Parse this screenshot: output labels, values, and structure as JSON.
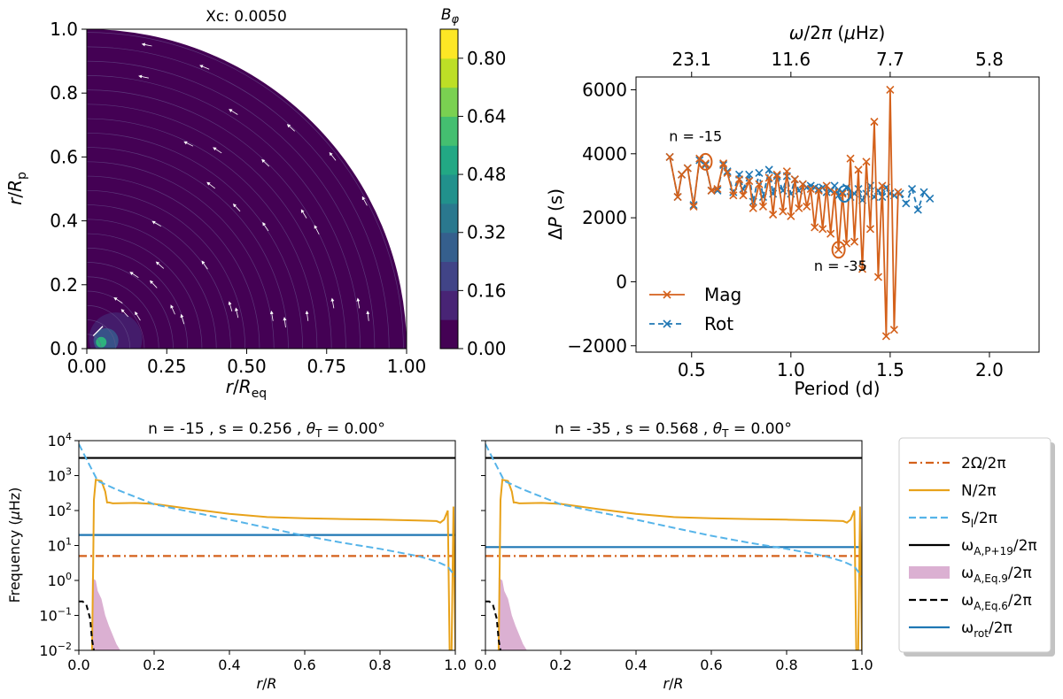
{
  "chart_data": [
    {
      "id": "meridional",
      "type": "heatmap",
      "title": "Xc: 0.0050",
      "xlabel": "r/R_eq",
      "ylabel": "r/R_p",
      "xlim": [
        0,
        1
      ],
      "ylim": [
        0,
        1
      ],
      "xticks": [
        "0.00",
        "0.25",
        "0.50",
        "0.75",
        "1.00"
      ],
      "yticks": [
        "0.0",
        "0.2",
        "0.4",
        "0.6",
        "0.8",
        "1.0"
      ],
      "colorbar": {
        "label": "B_φ",
        "ticks": [
          "0.00",
          "0.16",
          "0.32",
          "0.48",
          "0.64",
          "0.80"
        ],
        "range": [
          0,
          0.88
        ],
        "levels": [
          "#440154",
          "#482475",
          "#414487",
          "#355f8d",
          "#2a788e",
          "#21918c",
          "#22a884",
          "#44bf70",
          "#7ad151",
          "#bddf26",
          "#fde725"
        ]
      },
      "field_arrows": [
        [
          0.19,
          0.95
        ],
        [
          0.37,
          0.88
        ],
        [
          0.18,
          0.85
        ],
        [
          0.46,
          0.74
        ],
        [
          0.64,
          0.69
        ],
        [
          0.32,
          0.64
        ],
        [
          0.41,
          0.62
        ],
        [
          0.77,
          0.6
        ],
        [
          0.56,
          0.58
        ],
        [
          0.39,
          0.51
        ],
        [
          0.47,
          0.44
        ],
        [
          0.68,
          0.42
        ],
        [
          0.22,
          0.39
        ],
        [
          0.56,
          0.38
        ],
        [
          0.72,
          0.37
        ],
        [
          0.87,
          0.46
        ],
        [
          0.23,
          0.26
        ],
        [
          0.37,
          0.26
        ],
        [
          0.15,
          0.23
        ],
        [
          0.21,
          0.2
        ],
        [
          0.45,
          0.13
        ],
        [
          0.47,
          0.11
        ],
        [
          0.77,
          0.14
        ],
        [
          0.85,
          0.14
        ],
        [
          0.69,
          0.1
        ],
        [
          0.88,
          0.1
        ],
        [
          0.3,
          0.09
        ],
        [
          0.58,
          0.1
        ],
        [
          0.62,
          0.08
        ],
        [
          0.27,
          0.12
        ],
        [
          0.1,
          0.15
        ],
        [
          0.12,
          0.11
        ],
        [
          0.16,
          0.1
        ]
      ]
    },
    {
      "id": "period-spacing",
      "type": "line",
      "xlabel": "Period (d)",
      "ylabel": "ΔP (s)",
      "top_xlabel": "ω/2π (μHz)",
      "xlim": [
        0.22,
        2.25
      ],
      "ylim": [
        -2200,
        6400
      ],
      "xticks": [
        "0.5",
        "1.0",
        "1.5",
        "2.0"
      ],
      "yticks": [
        "−2000",
        "0",
        "2000",
        "4000",
        "6000"
      ],
      "top_xticks": [
        {
          "label": "23.1",
          "period": 0.5
        },
        {
          "label": "11.6",
          "period": 1.0
        },
        {
          "label": "7.7",
          "period": 1.5
        },
        {
          "label": "5.8",
          "period": 2.0
        }
      ],
      "series": [
        {
          "name": "Mag",
          "color": "#d4611b",
          "style": "solid",
          "x": [
            0.39,
            0.43,
            0.45,
            0.48,
            0.51,
            0.54,
            0.57,
            0.6,
            0.63,
            0.66,
            0.68,
            0.71,
            0.74,
            0.76,
            0.79,
            0.81,
            0.84,
            0.86,
            0.89,
            0.91,
            0.93,
            0.96,
            0.98,
            1.0,
            1.02,
            1.04,
            1.06,
            1.08,
            1.1,
            1.12,
            1.14,
            1.16,
            1.18,
            1.2,
            1.22,
            1.24,
            1.26,
            1.28,
            1.3,
            1.32,
            1.34,
            1.36,
            1.38,
            1.4,
            1.42,
            1.44,
            1.46,
            1.48,
            1.5,
            1.52,
            1.54
          ],
          "values": [
            3900,
            2650,
            3350,
            3550,
            2350,
            3850,
            3700,
            2850,
            2900,
            3700,
            3400,
            2700,
            3200,
            2700,
            3150,
            2300,
            3050,
            2350,
            3250,
            2100,
            3350,
            2200,
            3450,
            2050,
            3200,
            2300,
            3050,
            2350,
            2900,
            1700,
            2850,
            1650,
            3000,
            1500,
            2800,
            1000,
            2750,
            1200,
            3850,
            1250,
            3500,
            400,
            3750,
            1650,
            5000,
            150,
            3000,
            -1700,
            6000,
            -1500,
            2800
          ]
        },
        {
          "name": "Rot",
          "color": "#1f77b4",
          "style": "dashed",
          "x": [
            0.39,
            0.43,
            0.45,
            0.48,
            0.51,
            0.54,
            0.57,
            0.6,
            0.63,
            0.66,
            0.68,
            0.71,
            0.74,
            0.76,
            0.79,
            0.81,
            0.84,
            0.86,
            0.89,
            0.91,
            0.93,
            0.96,
            0.98,
            1.0,
            1.02,
            1.04,
            1.06,
            1.08,
            1.1,
            1.12,
            1.14,
            1.16,
            1.18,
            1.2,
            1.22,
            1.24,
            1.26,
            1.28,
            1.3,
            1.32,
            1.34,
            1.36,
            1.38,
            1.4,
            1.42,
            1.44,
            1.46,
            1.48,
            1.5,
            1.52,
            1.55,
            1.58,
            1.61,
            1.64,
            1.67,
            1.7
          ],
          "values": [
            3900,
            2650,
            3350,
            3550,
            2400,
            3800,
            3650,
            2850,
            2850,
            3650,
            3450,
            2800,
            3350,
            2900,
            3350,
            2500,
            3400,
            2650,
            3500,
            2750,
            3300,
            2850,
            3300,
            2750,
            3200,
            2850,
            3050,
            2950,
            3000,
            2950,
            2900,
            2950,
            2800,
            2850,
            3000,
            2700,
            2800,
            2950,
            2650,
            2750,
            2900,
            2550,
            2750,
            3000,
            2650,
            2850,
            2650,
            2950,
            2750,
            2700,
            2750,
            2450,
            2900,
            2250,
            2800,
            2600
          ]
        }
      ],
      "annotations": [
        {
          "text": "n = -15",
          "x": 0.52,
          "y": 4400,
          "circle": [
            0.57,
            3750
          ]
        },
        {
          "text": "n = -35",
          "x": 1.25,
          "y": 350,
          "circle": [
            1.24,
            1000
          ]
        }
      ],
      "extra_circle": [
        1.27,
        2750
      ]
    },
    {
      "id": "freq-n15",
      "type": "line",
      "title": "n = -15  ,  s = 0.256  ,  θ_T = 0.00°",
      "xlabel": "r/R",
      "ylabel": "Frequency (μHz)",
      "xlim": [
        0,
        1
      ],
      "ylim_log10": [
        -2,
        4
      ],
      "xticks": [
        "0.0",
        "0.2",
        "0.4",
        "0.6",
        "0.8",
        "1.0"
      ],
      "yticks": [
        "10^-2",
        "10^-1",
        "10^0",
        "10^1",
        "10^2",
        "10^3",
        "10^4"
      ],
      "series": [
        {
          "name": "2Ω/2π",
          "value": 5
        },
        {
          "name": "ω_A,P+19/2π",
          "value": 3200
        },
        {
          "name": "ω_rot/2π",
          "value": 20
        },
        {
          "name": "N/2π",
          "points": [
            [
              0.035,
              0.01
            ],
            [
              0.038,
              3
            ],
            [
              0.04,
              200
            ],
            [
              0.045,
              760
            ],
            [
              0.06,
              700
            ],
            [
              0.07,
              350
            ],
            [
              0.075,
              170
            ],
            [
              0.08,
              170
            ],
            [
              0.09,
              160
            ],
            [
              0.15,
              165
            ],
            [
              0.2,
              155
            ],
            [
              0.3,
              110
            ],
            [
              0.4,
              80
            ],
            [
              0.5,
              65
            ],
            [
              0.6,
              60
            ],
            [
              0.7,
              57
            ],
            [
              0.8,
              55
            ],
            [
              0.9,
              52
            ],
            [
              0.95,
              50
            ],
            [
              0.96,
              45
            ],
            [
              0.97,
              55
            ],
            [
              0.98,
              100
            ],
            [
              0.985,
              0.01
            ],
            [
              0.99,
              0.01
            ],
            [
              0.995,
              130
            ],
            [
              1.0,
              0.01
            ]
          ]
        },
        {
          "name": "S_l/2π",
          "points": [
            [
              0.0,
              8000
            ],
            [
              0.02,
              3000
            ],
            [
              0.05,
              700
            ],
            [
              0.1,
              400
            ],
            [
              0.2,
              150
            ],
            [
              0.3,
              90
            ],
            [
              0.4,
              55
            ],
            [
              0.5,
              32
            ],
            [
              0.6,
              19
            ],
            [
              0.7,
              12
            ],
            [
              0.8,
              8
            ],
            [
              0.9,
              5
            ],
            [
              0.95,
              3.5
            ],
            [
              0.98,
              2.5
            ],
            [
              1.0,
              1.3
            ]
          ]
        },
        {
          "name": "ω_A,Eq.6/2π",
          "points": [
            [
              0.0,
              0.25
            ],
            [
              0.01,
              0.25
            ],
            [
              0.02,
              0.2
            ],
            [
              0.03,
              0.08
            ],
            [
              0.035,
              0.02
            ],
            [
              0.04,
              0.01
            ]
          ]
        }
      ],
      "shaded": {
        "name": "ω_A,Eq.9/2π",
        "upper": [
          [
            0.035,
            1.2
          ],
          [
            0.045,
            1.0
          ],
          [
            0.05,
            0.5
          ],
          [
            0.06,
            0.3
          ],
          [
            0.07,
            0.1
          ],
          [
            0.08,
            0.05
          ],
          [
            0.1,
            0.015
          ],
          [
            0.11,
            0.01
          ]
        ],
        "lower_log10": -2
      }
    },
    {
      "id": "freq-n35",
      "type": "line",
      "title": "n = -35  ,  s = 0.568  ,  θ_T = 0.00°",
      "xlabel": "r/R",
      "xlim": [
        0,
        1
      ],
      "ylim_log10": [
        -2,
        4
      ],
      "xticks": [
        "0.0",
        "0.2",
        "0.4",
        "0.6",
        "0.8",
        "1.0"
      ],
      "series": [
        {
          "name": "2Ω/2π",
          "value": 5
        },
        {
          "name": "ω_A,P+19/2π",
          "value": 3200
        },
        {
          "name": "ω_rot/2π",
          "value": 9
        },
        {
          "name": "N/2π",
          "points": [
            [
              0.035,
              0.01
            ],
            [
              0.038,
              3
            ],
            [
              0.04,
              200
            ],
            [
              0.045,
              760
            ],
            [
              0.06,
              700
            ],
            [
              0.07,
              350
            ],
            [
              0.075,
              170
            ],
            [
              0.08,
              170
            ],
            [
              0.09,
              160
            ],
            [
              0.15,
              165
            ],
            [
              0.2,
              155
            ],
            [
              0.3,
              110
            ],
            [
              0.4,
              80
            ],
            [
              0.5,
              65
            ],
            [
              0.6,
              60
            ],
            [
              0.7,
              57
            ],
            [
              0.8,
              55
            ],
            [
              0.9,
              52
            ],
            [
              0.95,
              50
            ],
            [
              0.96,
              45
            ],
            [
              0.97,
              55
            ],
            [
              0.98,
              100
            ],
            [
              0.985,
              0.01
            ],
            [
              0.99,
              0.01
            ],
            [
              0.995,
              130
            ],
            [
              1.0,
              0.01
            ]
          ]
        },
        {
          "name": "S_l/2π",
          "points": [
            [
              0.0,
              8000
            ],
            [
              0.02,
              3000
            ],
            [
              0.05,
              700
            ],
            [
              0.1,
              400
            ],
            [
              0.2,
              150
            ],
            [
              0.3,
              90
            ],
            [
              0.4,
              55
            ],
            [
              0.5,
              32
            ],
            [
              0.6,
              19
            ],
            [
              0.7,
              12
            ],
            [
              0.8,
              8
            ],
            [
              0.9,
              5
            ],
            [
              0.95,
              3.5
            ],
            [
              0.98,
              2.5
            ],
            [
              1.0,
              1.3
            ]
          ]
        },
        {
          "name": "ω_A,Eq.6/2π",
          "points": [
            [
              0.0,
              0.25
            ],
            [
              0.01,
              0.25
            ],
            [
              0.02,
              0.2
            ],
            [
              0.03,
              0.08
            ],
            [
              0.035,
              0.02
            ],
            [
              0.04,
              0.01
            ]
          ]
        }
      ],
      "shaded": {
        "name": "ω_A,Eq.9/2π",
        "upper": [
          [
            0.035,
            1.2
          ],
          [
            0.045,
            1.0
          ],
          [
            0.05,
            0.5
          ],
          [
            0.06,
            0.3
          ],
          [
            0.07,
            0.1
          ],
          [
            0.08,
            0.05
          ],
          [
            0.1,
            0.015
          ],
          [
            0.11,
            0.01
          ]
        ],
        "lower_log10": -2
      }
    }
  ],
  "colors": {
    "two_omega": "#d4611b",
    "n": "#e8a21a",
    "sl": "#56b4e9",
    "alfven_p19": "#000000",
    "alfven_eq9": "#dbb0d2",
    "alfven_eq6": "#000000",
    "rot": "#1f77b4"
  },
  "legends": {
    "period": [
      {
        "name": "Mag",
        "style": "solid",
        "color": "#d4611b"
      },
      {
        "name": "Rot",
        "style": "dashed",
        "color": "#1f77b4"
      }
    ],
    "frequency": [
      {
        "key": "two_omega",
        "style": "dashdot"
      },
      {
        "key": "n",
        "style": "solid"
      },
      {
        "key": "sl",
        "style": "dashed"
      },
      {
        "key": "alfven_p19",
        "style": "solid"
      },
      {
        "key": "alfven_eq9",
        "style": "patch"
      },
      {
        "key": "alfven_eq6",
        "style": "dashed"
      },
      {
        "key": "rot",
        "style": "solid"
      }
    ]
  },
  "legend_labels": {
    "two_omega": "2Ω/2π",
    "n": "N/2π",
    "sl": "S_l/2π",
    "alfven_p19": "ω_A,P+19/2π",
    "alfven_eq9": "ω_A,Eq.9/2π",
    "alfven_eq6": "ω_A,Eq.6/2π",
    "rot": "ω_rot/2π"
  }
}
